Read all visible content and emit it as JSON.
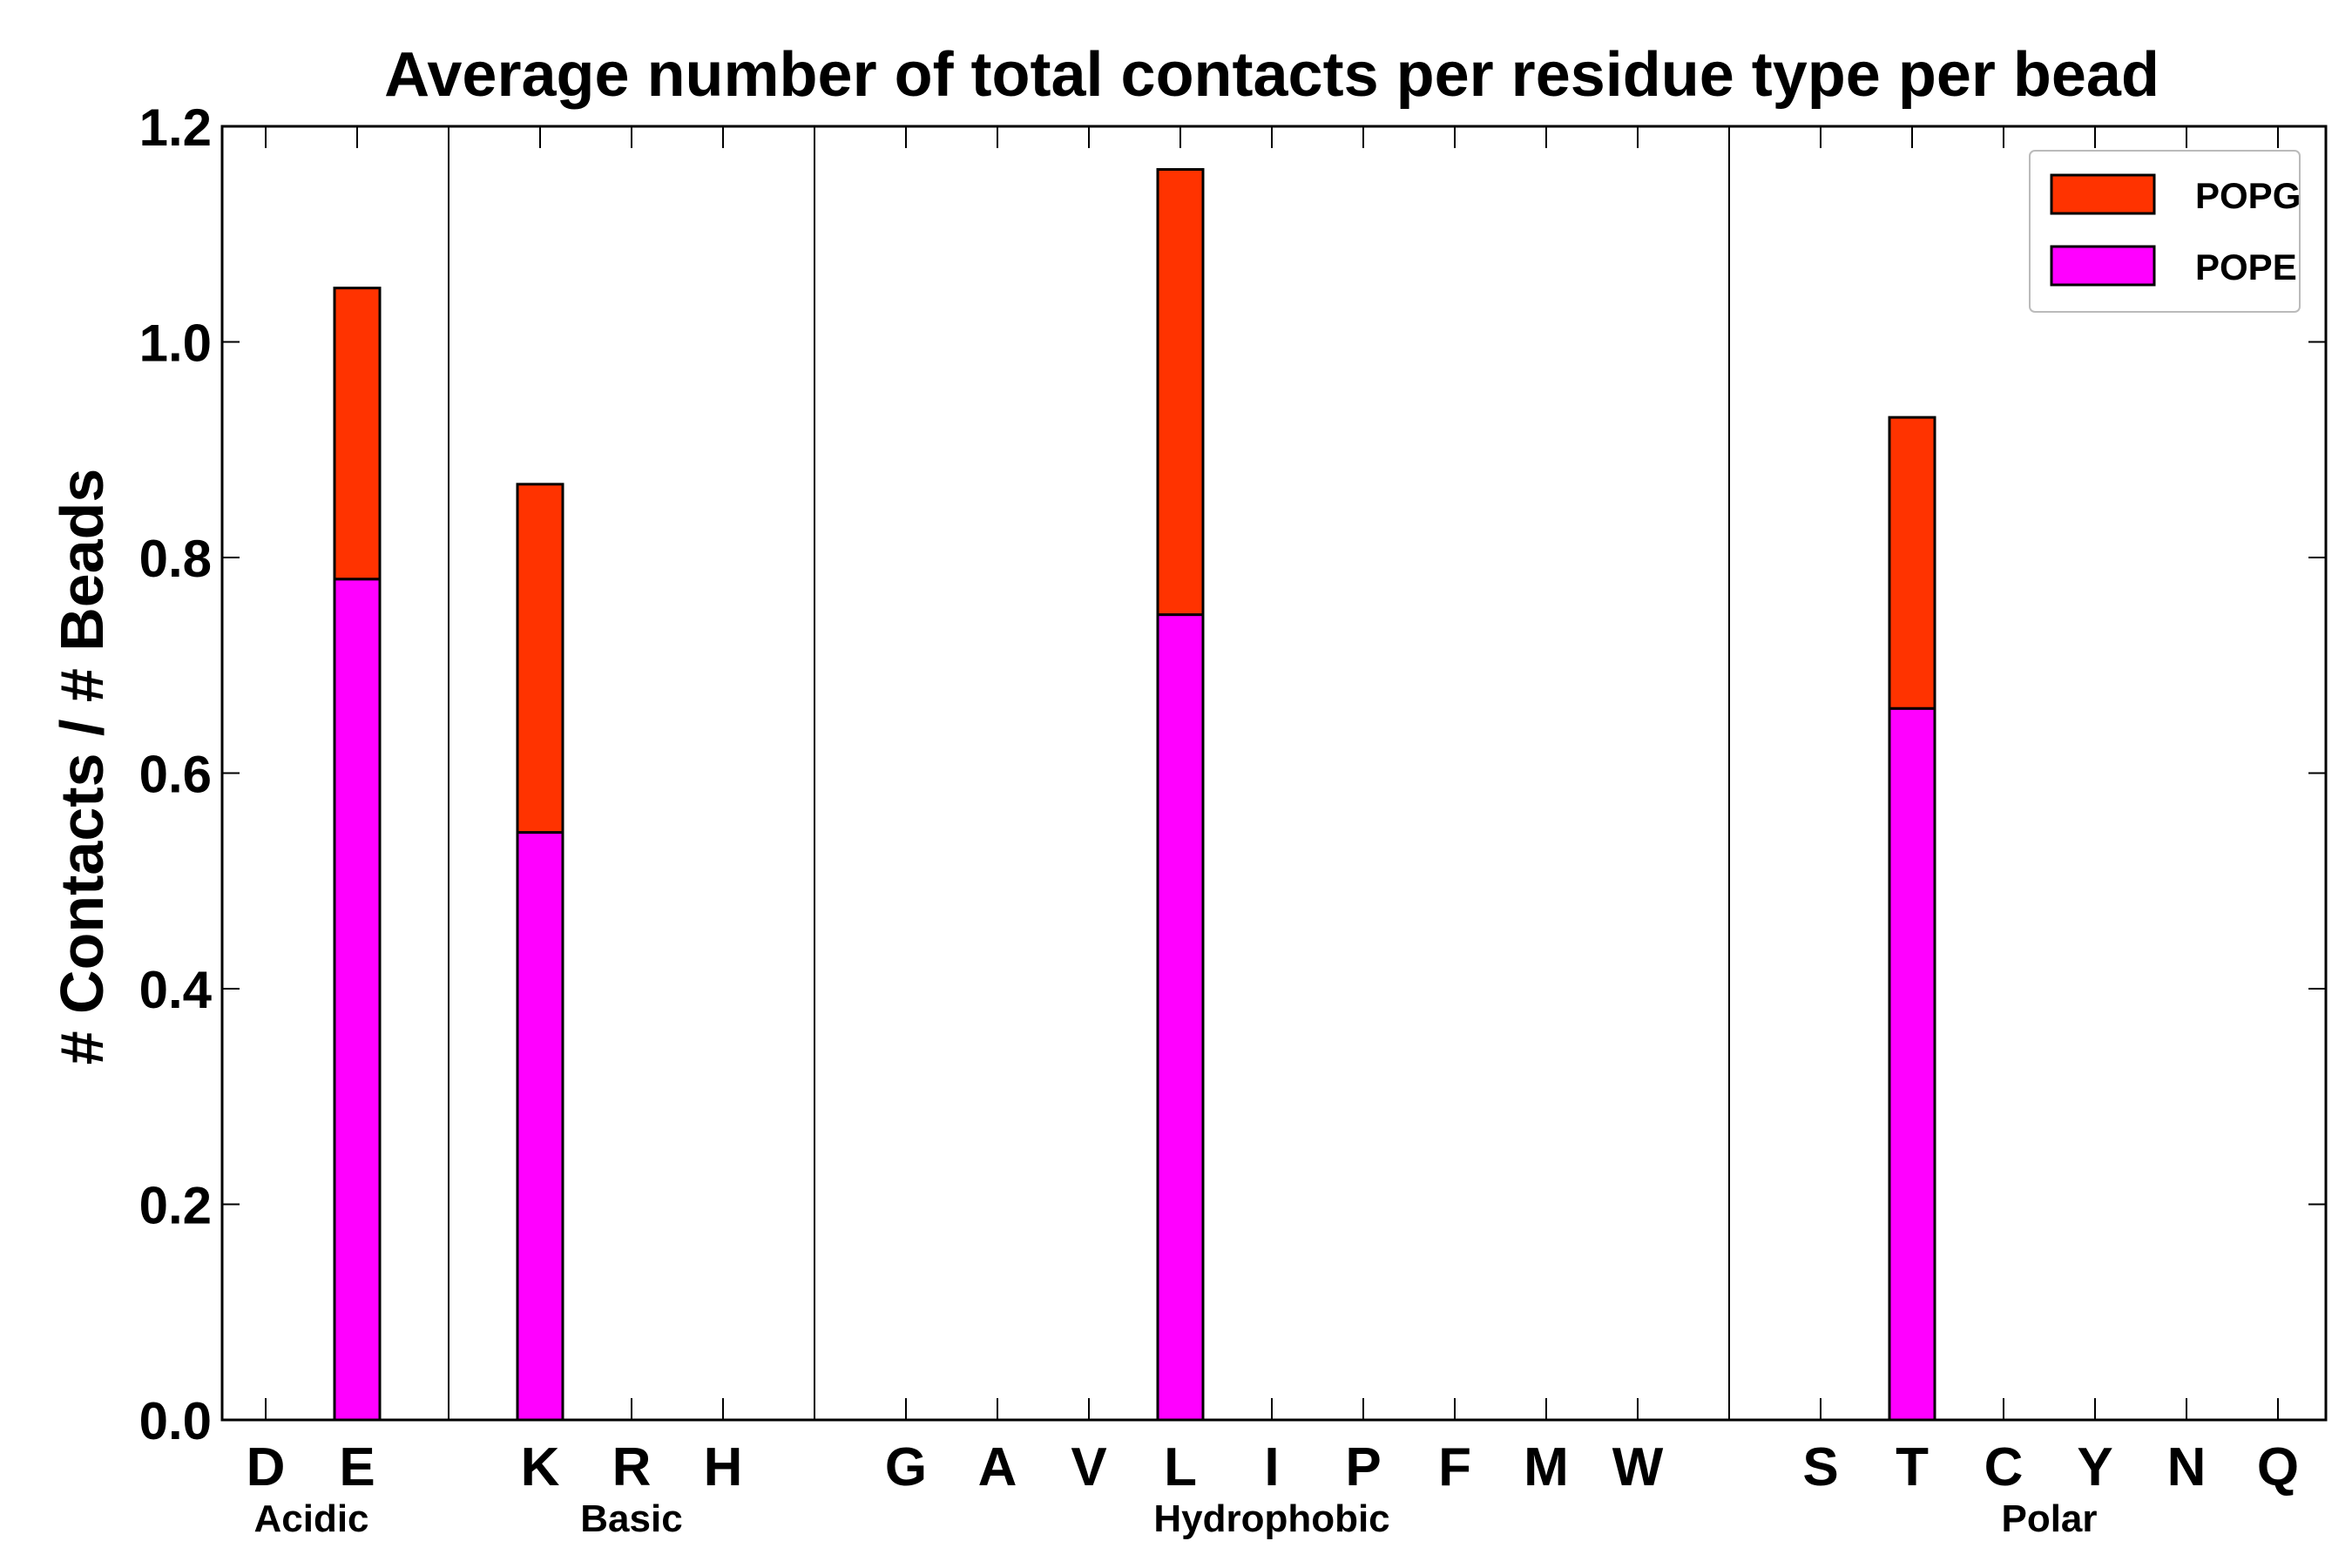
{
  "chart_data": {
    "type": "bar",
    "stacked": true,
    "title": "Average number of total contacts per residue type per bead",
    "xlabel": "",
    "ylabel": "# Contacts / # Beads",
    "ylim": [
      0,
      1.2
    ],
    "yticks": [
      "0.0",
      "0.2",
      "0.4",
      "0.6",
      "0.8",
      "1.0",
      "1.2"
    ],
    "categories": [
      "D",
      "E",
      "K",
      "R",
      "H",
      "G",
      "A",
      "V",
      "L",
      "I",
      "P",
      "F",
      "M",
      "W",
      "S",
      "T",
      "C",
      "Y",
      "N",
      "Q"
    ],
    "groups": [
      {
        "name": "Acidic",
        "members": [
          "D",
          "E"
        ]
      },
      {
        "name": "Basic",
        "members": [
          "K",
          "R",
          "H"
        ]
      },
      {
        "name": "Hydrophobic",
        "members": [
          "G",
          "A",
          "V",
          "L",
          "I",
          "P",
          "F",
          "M",
          "W"
        ]
      },
      {
        "name": "Polar",
        "members": [
          "S",
          "T",
          "C",
          "Y",
          "N",
          "Q"
        ]
      }
    ],
    "series": [
      {
        "name": "POPE",
        "color": "#ff00ff",
        "values": [
          0,
          0.78,
          0.545,
          0,
          0,
          0,
          0,
          0,
          0.747,
          0,
          0,
          0,
          0,
          0,
          0,
          0.66,
          0,
          0,
          0,
          0
        ]
      },
      {
        "name": "POPG",
        "color": "#ff3300",
        "values": [
          0,
          0.27,
          0.323,
          0,
          0,
          0,
          0,
          0,
          0.413,
          0,
          0,
          0,
          0,
          0,
          0,
          0.27,
          0,
          0,
          0,
          0
        ]
      }
    ],
    "legend": {
      "position": "top-right",
      "order": [
        "POPG",
        "POPE"
      ]
    }
  }
}
